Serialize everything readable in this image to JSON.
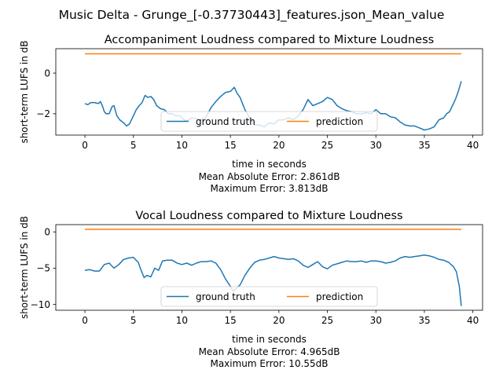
{
  "figure": {
    "suptitle": "Music Delta - Grunge_[-0.37730443]_features.json_Mean_value"
  },
  "colors": {
    "ground_truth": "#1f77b4",
    "prediction": "#ff7f0e"
  },
  "chart_data": [
    {
      "type": "line",
      "title": "Accompaniment Loudness compared to Mixture Loudness",
      "xlabel": "time in seconds",
      "ylabel": "short-term LUFS in dB",
      "xlim": [
        -3,
        41
      ],
      "ylim": [
        -3.05,
        1.2
      ],
      "xticks": [
        0,
        5,
        10,
        15,
        20,
        25,
        30,
        35,
        40
      ],
      "yticks": [
        -2,
        0
      ],
      "legend": {
        "placement": "lower center",
        "entries": [
          "ground truth",
          "prediction"
        ]
      },
      "stats": [
        "Mean Absolute Error: 2.861dB",
        "Maximum Error: 3.813dB"
      ],
      "series": [
        {
          "name": "ground truth",
          "color": "#1f77b4",
          "x": [
            0,
            0.3,
            0.6,
            1,
            1.4,
            1.6,
            1.8,
            2,
            2.2,
            2.5,
            2.8,
            3,
            3.3,
            3.6,
            4,
            4.3,
            4.6,
            5,
            5.3,
            5.6,
            5.9,
            6.2,
            6.5,
            6.8,
            7.1,
            7.4,
            7.8,
            8.2,
            8.6,
            9,
            9.4,
            9.8,
            10.2,
            10.6,
            11,
            11.5,
            12,
            12.5,
            13,
            13.5,
            14,
            14.5,
            15,
            15.4,
            15.7,
            16,
            16.5,
            17,
            17.5,
            18,
            18.5,
            19,
            19.5,
            20,
            20.5,
            21,
            21.5,
            22,
            22.5,
            23,
            23.5,
            24,
            24.5,
            25,
            25.5,
            26,
            26.5,
            27,
            27.5,
            28,
            28.5,
            29,
            29.5,
            30,
            30.5,
            31,
            31.5,
            32,
            32.5,
            33,
            33.5,
            34,
            34.5,
            35,
            35.5,
            36,
            36.5,
            37,
            37.3,
            37.6,
            37.9,
            38.2,
            38.5,
            38.8
          ],
          "values": [
            -1.5,
            -1.55,
            -1.45,
            -1.45,
            -1.5,
            -1.4,
            -1.6,
            -1.9,
            -2.0,
            -2.0,
            -1.65,
            -1.6,
            -2.1,
            -2.3,
            -2.45,
            -2.6,
            -2.5,
            -2.1,
            -1.8,
            -1.6,
            -1.45,
            -1.1,
            -1.2,
            -1.15,
            -1.3,
            -1.6,
            -1.75,
            -1.8,
            -2.0,
            -2.0,
            -2.1,
            -2.1,
            -2.3,
            -2.35,
            -2.2,
            -2.25,
            -2.3,
            -2.15,
            -1.7,
            -1.4,
            -1.15,
            -0.95,
            -0.9,
            -0.7,
            -1.0,
            -1.2,
            -1.8,
            -2.2,
            -2.55,
            -2.55,
            -2.65,
            -2.45,
            -2.5,
            -2.3,
            -2.3,
            -2.2,
            -2.3,
            -2.1,
            -1.8,
            -1.3,
            -1.6,
            -1.5,
            -1.4,
            -1.2,
            -1.3,
            -1.6,
            -1.75,
            -1.85,
            -1.9,
            -2.0,
            -2.0,
            -1.95,
            -2.0,
            -1.8,
            -2.0,
            -2.0,
            -2.15,
            -2.2,
            -2.4,
            -2.55,
            -2.6,
            -2.6,
            -2.7,
            -2.8,
            -2.75,
            -2.65,
            -2.3,
            -2.2,
            -2.0,
            -1.9,
            -1.6,
            -1.3,
            -0.9,
            -0.4
          ]
        },
        {
          "name": "prediction",
          "color": "#ff7f0e",
          "x": [
            0,
            38.8
          ],
          "values": [
            0.95,
            0.95
          ]
        }
      ]
    },
    {
      "type": "line",
      "title": "Vocal Loudness compared to Mixture Loudness",
      "xlabel": "time in seconds",
      "ylabel": "short-term LUFS in dB",
      "xlim": [
        -3,
        41
      ],
      "ylim": [
        -10.8,
        1.0
      ],
      "xticks": [
        0,
        5,
        10,
        15,
        20,
        25,
        30,
        35,
        40
      ],
      "yticks": [
        -10,
        -5,
        0
      ],
      "legend": {
        "placement": "lower center",
        "entries": [
          "ground truth",
          "prediction"
        ]
      },
      "stats": [
        "Mean Absolute Error: 4.965dB",
        "Maximum Error: 10.55dB"
      ],
      "series": [
        {
          "name": "ground truth",
          "color": "#1f77b4",
          "x": [
            0,
            0.5,
            1,
            1.5,
            2,
            2.5,
            3,
            3.5,
            4,
            4.5,
            5,
            5.5,
            5.8,
            6.1,
            6.4,
            6.8,
            7.2,
            7.6,
            8,
            8.5,
            9,
            9.5,
            10,
            10.5,
            11,
            11.5,
            12,
            12.5,
            13,
            13.5,
            14,
            14.5,
            15,
            15.3,
            15.6,
            16,
            16.5,
            17,
            17.5,
            18,
            18.5,
            19,
            19.5,
            20,
            20.5,
            21,
            21.5,
            22,
            22.5,
            23,
            23.5,
            24,
            24.5,
            25,
            25.5,
            26,
            26.5,
            27,
            27.5,
            28,
            28.5,
            29,
            29.5,
            30,
            30.5,
            31,
            31.5,
            32,
            32.5,
            33,
            33.5,
            34,
            34.5,
            35,
            35.5,
            36,
            36.5,
            37,
            37.5,
            38,
            38.3,
            38.6,
            38.8
          ],
          "values": [
            -5.3,
            -5.2,
            -5.4,
            -5.4,
            -4.5,
            -4.3,
            -5.0,
            -4.5,
            -3.8,
            -3.6,
            -3.5,
            -4.2,
            -5.3,
            -6.3,
            -6.0,
            -6.2,
            -5.0,
            -5.3,
            -4.0,
            -3.9,
            -3.9,
            -4.3,
            -4.5,
            -4.3,
            -4.6,
            -4.3,
            -4.1,
            -4.1,
            -4.0,
            -4.3,
            -5.2,
            -6.5,
            -7.5,
            -8.2,
            -7.8,
            -7.3,
            -6.0,
            -5.0,
            -4.2,
            -3.9,
            -3.8,
            -3.6,
            -3.4,
            -3.6,
            -3.7,
            -3.8,
            -3.7,
            -4.0,
            -4.6,
            -4.9,
            -4.5,
            -4.1,
            -4.8,
            -5.1,
            -4.6,
            -4.4,
            -4.2,
            -4.0,
            -4.1,
            -4.1,
            -4.0,
            -4.2,
            -4.0,
            -4.0,
            -4.1,
            -4.3,
            -4.2,
            -4.0,
            -3.6,
            -3.4,
            -3.5,
            -3.4,
            -3.3,
            -3.2,
            -3.3,
            -3.5,
            -3.8,
            -3.9,
            -4.2,
            -4.8,
            -5.5,
            -7.5,
            -10.2
          ]
        },
        {
          "name": "prediction",
          "color": "#ff7f0e",
          "x": [
            0,
            38.8
          ],
          "values": [
            0.35,
            0.35
          ]
        }
      ]
    }
  ]
}
